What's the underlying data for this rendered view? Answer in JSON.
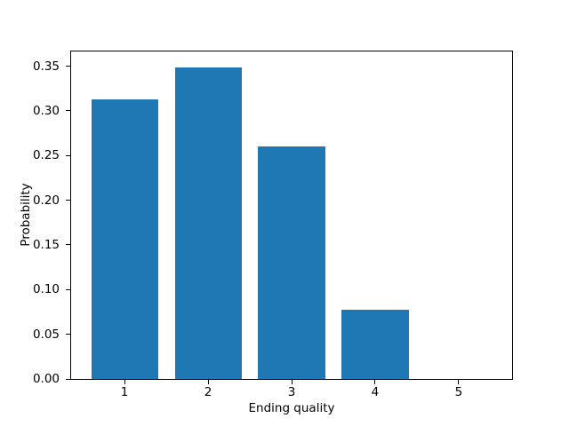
{
  "figure": {
    "background": "#ffffff",
    "text_color": "#000000",
    "axes_color": "#000000"
  },
  "chart_data": {
    "type": "bar",
    "title": "",
    "xlabel": "Ending quality",
    "ylabel": "Probability",
    "categories": [
      "1",
      "2",
      "3",
      "4",
      "5"
    ],
    "x": [
      1,
      2,
      3,
      4,
      5
    ],
    "values": [
      0.313,
      0.349,
      0.26,
      0.078,
      0.0
    ],
    "bar_width": 0.8,
    "bar_color": "#1f77b4",
    "xlim": [
      0.36,
      5.64
    ],
    "ylim": [
      0,
      0.3665
    ],
    "xticks": [
      1,
      2,
      3,
      4,
      5
    ],
    "xtick_labels": [
      "1",
      "2",
      "3",
      "4",
      "5"
    ],
    "yticks": [
      0.0,
      0.05,
      0.1,
      0.15,
      0.2,
      0.25,
      0.3,
      0.35
    ],
    "ytick_labels": [
      "0.00",
      "0.05",
      "0.10",
      "0.15",
      "0.20",
      "0.25",
      "0.30",
      "0.35"
    ],
    "grid": false,
    "legend": null
  }
}
